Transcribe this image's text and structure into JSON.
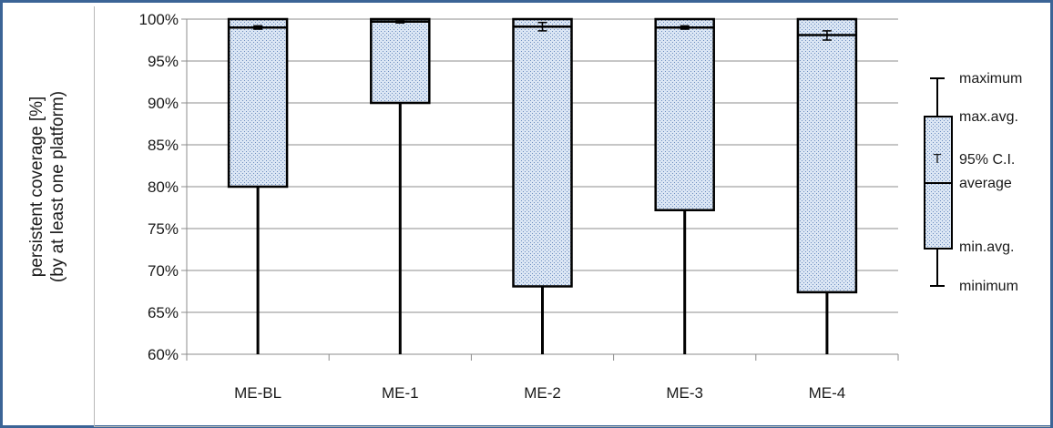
{
  "chart_data": {
    "type": "box",
    "ylabel_line1": "persistent coverage [%]",
    "ylabel_line2": "(by at least one platform)",
    "yticks": [
      "100%",
      "95%",
      "90%",
      "85%",
      "80%",
      "75%",
      "70%",
      "65%",
      "60%"
    ],
    "ylim": [
      60,
      100
    ],
    "grid": true,
    "categories": [
      "ME-BL",
      "ME-1",
      "ME-2",
      "ME-3",
      "ME-4"
    ],
    "series": [
      {
        "category": "ME-BL",
        "minimum": 60,
        "min_avg": 80.0,
        "average": 99.0,
        "ci_low": 98.8,
        "ci_high": 99.2,
        "max_avg": 100,
        "maximum": 100
      },
      {
        "category": "ME-1",
        "minimum": 60,
        "min_avg": 90.0,
        "average": 99.7,
        "ci_low": 99.55,
        "ci_high": 99.8,
        "max_avg": 100,
        "maximum": 100
      },
      {
        "category": "ME-2",
        "minimum": 60,
        "min_avg": 68.1,
        "average": 99.1,
        "ci_low": 98.6,
        "ci_high": 99.6,
        "max_avg": 100,
        "maximum": 100
      },
      {
        "category": "ME-3",
        "minimum": 60,
        "min_avg": 77.2,
        "average": 99.0,
        "ci_low": 98.8,
        "ci_high": 99.2,
        "max_avg": 100,
        "maximum": 100
      },
      {
        "category": "ME-4",
        "minimum": 60,
        "min_avg": 67.4,
        "average": 98.1,
        "ci_low": 97.5,
        "ci_high": 98.6,
        "max_avg": 100,
        "maximum": 100
      }
    ],
    "legend": {
      "position": "right",
      "maximum": "maximum",
      "max_avg": "max.avg.",
      "ci": "95% C.I.",
      "average": "average",
      "min_avg": "min.avg.",
      "minimum": "minimum"
    }
  }
}
